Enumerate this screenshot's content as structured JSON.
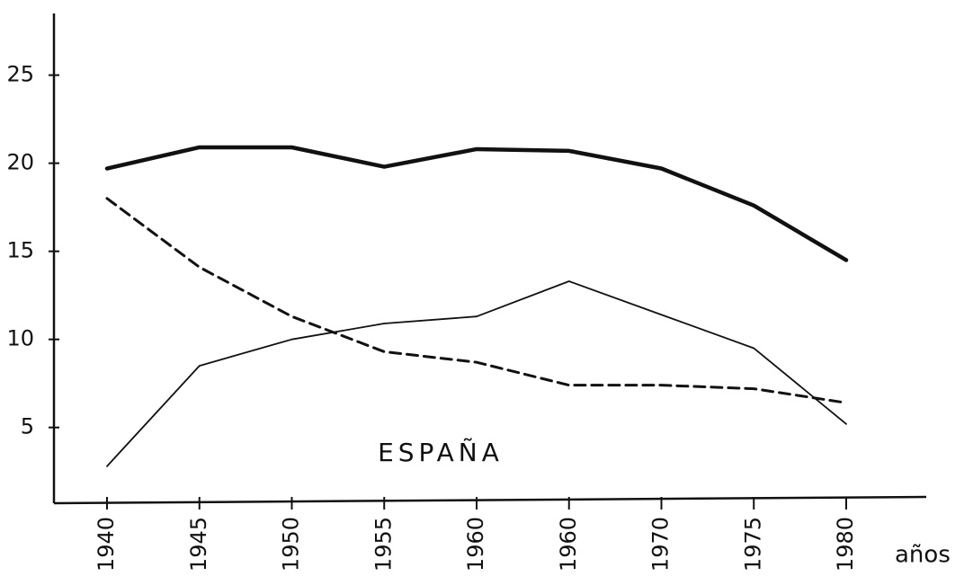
{
  "chart_data": {
    "type": "line",
    "annotation": "ESPAÑA",
    "x_label": "años",
    "categories": [
      "1940",
      "1945",
      "1950",
      "1955",
      "1960",
      "1960",
      "1970",
      "1975",
      "1980"
    ],
    "series": [
      {
        "color": "#111111",
        "line_style": "thick",
        "values": [
          19.7,
          20.9,
          20.9,
          19.8,
          20.8,
          20.7,
          19.7,
          17.6,
          14.5
        ]
      },
      {
        "color": "#111111",
        "line_style": "dashed",
        "values": [
          18.0,
          14.1,
          11.3,
          9.3,
          8.7,
          7.4,
          7.4,
          7.2,
          6.4
        ]
      },
      {
        "color": "#111111",
        "line_style": "thin",
        "values": [
          2.8,
          8.5,
          10.0,
          10.9,
          11.3,
          13.3,
          11.4,
          9.5,
          5.2
        ]
      }
    ],
    "ylim": [
      0.7,
      28.5
    ],
    "yticks": [
      5,
      10,
      15,
      20,
      25
    ],
    "grid": false
  }
}
